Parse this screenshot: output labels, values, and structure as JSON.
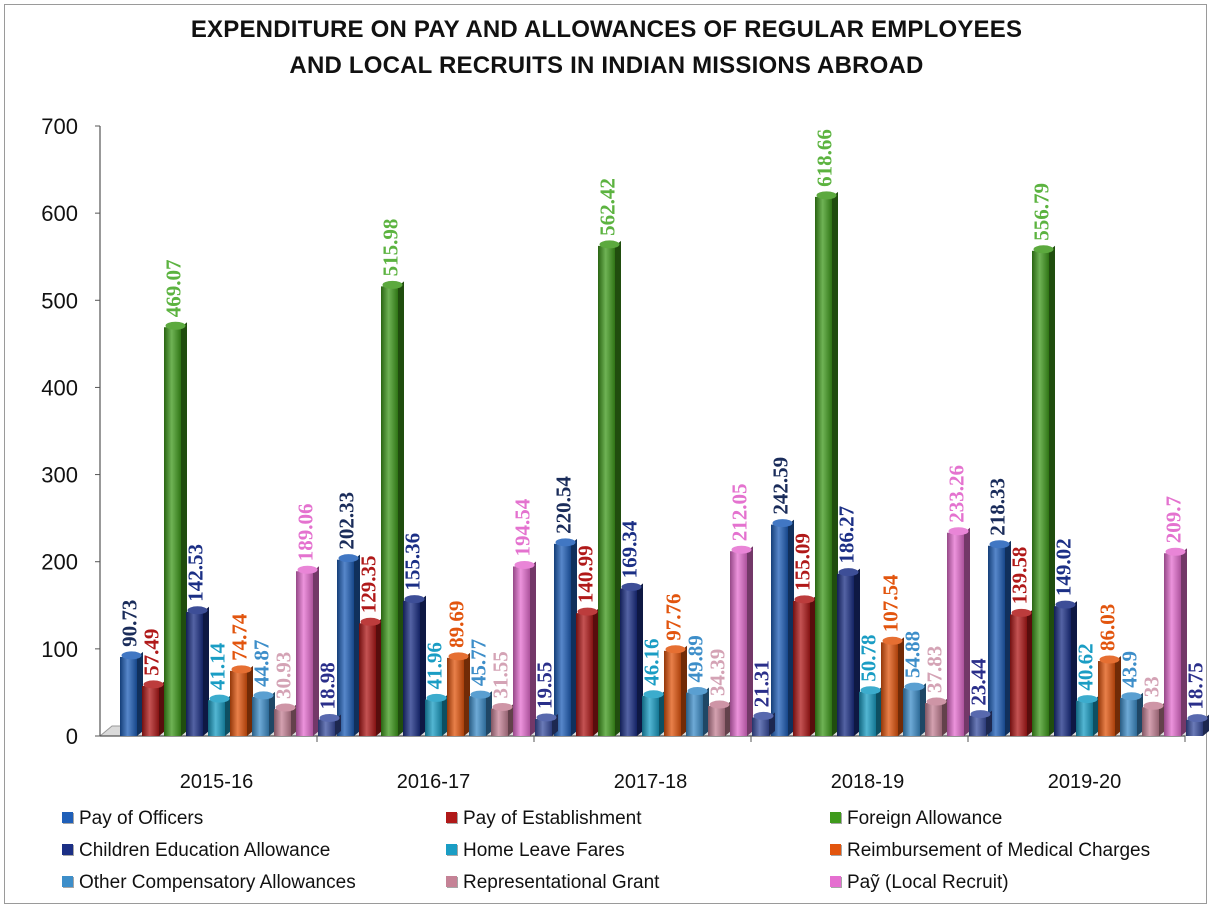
{
  "chart_data": {
    "type": "bar",
    "title_lines": [
      "EXPENDITURE ON PAY AND ALLOWANCES OF REGULAR EMPLOYEES",
      "AND LOCAL RECRUITS IN INDIAN MISSIONS ABROAD"
    ],
    "categories": [
      "2015-16",
      "2016-17",
      "2017-18",
      "2018-19",
      "2019-20"
    ],
    "ylim": [
      0,
      700
    ],
    "yticks": [
      0,
      100,
      200,
      300,
      400,
      500,
      600,
      700
    ],
    "grid": false,
    "legend_position": "bottom",
    "series": [
      {
        "name": "Pay of Officers",
        "color": "#1f5fb8",
        "label_color": "#1a2c5a",
        "values": [
          90.73,
          202.33,
          220.54,
          242.59,
          218.33
        ],
        "labels": [
          "90.73",
          "202.33",
          "220.54",
          "242.59",
          "218.33"
        ]
      },
      {
        "name": "Pay of Establishment",
        "color": "#b01919",
        "label_color": "#b01919",
        "values": [
          57.49,
          129.35,
          140.99,
          155.09,
          139.58
        ],
        "labels": [
          "57.49",
          "129.35",
          "140.99",
          "155.09",
          "139.58"
        ]
      },
      {
        "name": "Foreign Allowance",
        "color": "#3f9a1c",
        "label_color": "#5cb340",
        "values": [
          469.07,
          515.98,
          562.42,
          618.66,
          556.79
        ],
        "labels": [
          "469.07",
          "515.98",
          "562.42",
          "618.66",
          "556.79"
        ]
      },
      {
        "name": "Children Education Allowance",
        "color": "#1b2f85",
        "label_color": "#1b2f85",
        "values": [
          142.53,
          155.36,
          169.34,
          186.27,
          149.02
        ],
        "labels": [
          "142.53",
          "155.36",
          "169.34",
          "186.27",
          "149.02"
        ]
      },
      {
        "name": "Home Leave Fares",
        "color": "#1a9dc4",
        "label_color": "#1a9dc4",
        "values": [
          41.14,
          41.96,
          46.16,
          50.78,
          40.62
        ],
        "labels": [
          "41.14",
          "41.96",
          "46.16",
          "50.78",
          "40.62"
        ]
      },
      {
        "name": "Reimbursement of Medical Charges",
        "color": "#e2550e",
        "label_color": "#e2550e",
        "values": [
          74.74,
          89.69,
          97.76,
          107.54,
          86.03
        ],
        "labels": [
          "74.74",
          "89.69",
          "97.76",
          "107.54",
          "86.03"
        ]
      },
      {
        "name": "Other Compensatory Allowances",
        "color": "#3d8ec9",
        "label_color": "#3d8ec9",
        "values": [
          44.87,
          45.77,
          49.89,
          54.88,
          43.9
        ],
        "labels": [
          "44.87",
          "45.77",
          "49.89",
          "54.88",
          "43.9"
        ]
      },
      {
        "name": "Representational Grant",
        "color": "#c58296",
        "label_color": "#d4a3b5",
        "values": [
          30.93,
          31.55,
          34.39,
          37.83,
          33
        ],
        "labels": [
          "30.93",
          "31.55",
          "34.39",
          "37.83",
          "33"
        ]
      },
      {
        "name": "Pay (Local Recruit)",
        "color": "#e56fd0",
        "label_color": "#e472cf",
        "values": [
          189.06,
          194.54,
          212.05,
          233.26,
          209.7
        ],
        "labels": [
          "189.06",
          "194.54",
          "212.05",
          "233.26",
          "209.7"
        ]
      },
      {
        "name": "",
        "color": "#3a4fa0",
        "label_color": "#2a2f8a",
        "values": [
          18.98,
          19.55,
          21.31,
          23.44,
          18.75
        ],
        "labels": [
          "18.98",
          "19.55",
          "21.31",
          "23.44",
          "18.75"
        ]
      }
    ]
  },
  "legend_items": [
    "Pay of Officers",
    "Pay of Establishment",
    "Foreign Allowance",
    "Children Education Allowance",
    "Home Leave Fares",
    "Reimbursement of Medical Charges",
    "Other Compensatory Allowances",
    "Representational Grant",
    "Paỹ (Local Recruit)"
  ],
  "legend_colors": [
    "#1f5fb8",
    "#b01919",
    "#3f9a1c",
    "#1b2f85",
    "#1a9dc4",
    "#e2550e",
    "#3d8ec9",
    "#c58296",
    "#e56fd0"
  ]
}
